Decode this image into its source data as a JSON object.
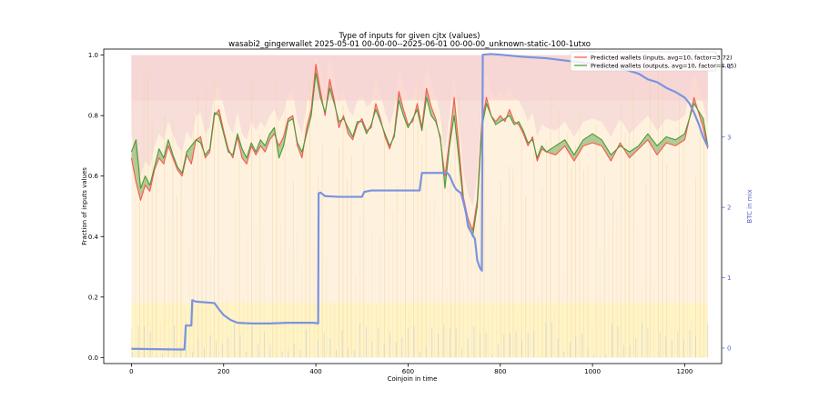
{
  "chart_data": {
    "type": "line",
    "title": "Type of inputs for given cjtx (values)",
    "subtitle": "wasabi2_gingerwallet 2025-05-01 00-00-00--2025-06-01 00-00-00_unknown-static-100-1utxo",
    "xlabel": "Coinjoin in time",
    "ylabel": "Fraction of inputs values",
    "y2label": "BTC in mix",
    "xlim": [
      -60,
      1280
    ],
    "ylim": [
      -0.02,
      1.02
    ],
    "y2lim": [
      -0.22,
      4.25
    ],
    "x_ticks": [
      0,
      200,
      400,
      600,
      800,
      1000,
      1200
    ],
    "y_ticks": [
      0.0,
      0.2,
      0.4,
      0.6,
      0.8,
      1.0
    ],
    "y_tick_labels": [
      "0.0",
      "0.2",
      "0.4",
      "0.6",
      "0.8",
      "1.0"
    ],
    "y2_ticks": [
      0,
      1,
      2,
      3,
      4
    ],
    "y2_tick_labels": [
      "0",
      "1",
      "2",
      "3",
      "4"
    ],
    "legend_position": "top-right",
    "grid": false,
    "series": [
      {
        "name": "Predicted wallets (inputs, avg=10, factor=3.72)",
        "color": "#ff5555",
        "axis": "left",
        "x": [
          0,
          10,
          20,
          30,
          40,
          50,
          60,
          70,
          80,
          90,
          100,
          110,
          120,
          130,
          140,
          150,
          160,
          170,
          180,
          190,
          200,
          210,
          220,
          230,
          240,
          250,
          260,
          270,
          280,
          290,
          300,
          310,
          320,
          330,
          340,
          350,
          360,
          370,
          380,
          390,
          400,
          410,
          420,
          430,
          440,
          450,
          460,
          470,
          480,
          490,
          500,
          510,
          520,
          530,
          540,
          550,
          560,
          570,
          580,
          590,
          600,
          610,
          620,
          630,
          640,
          650,
          660,
          670,
          680,
          690,
          700,
          710,
          720,
          730,
          740,
          750,
          760,
          770,
          780,
          790,
          800,
          810,
          820,
          830,
          840,
          850,
          860,
          870,
          880,
          890,
          900,
          920,
          940,
          960,
          980,
          1000,
          1020,
          1040,
          1060,
          1080,
          1100,
          1120,
          1140,
          1160,
          1180,
          1200,
          1220,
          1240,
          1250
        ],
        "values": [
          0.66,
          0.58,
          0.52,
          0.57,
          0.55,
          0.62,
          0.66,
          0.64,
          0.7,
          0.66,
          0.62,
          0.6,
          0.67,
          0.64,
          0.72,
          0.73,
          0.66,
          0.68,
          0.8,
          0.82,
          0.75,
          0.69,
          0.66,
          0.73,
          0.66,
          0.64,
          0.7,
          0.67,
          0.7,
          0.68,
          0.72,
          0.74,
          0.7,
          0.73,
          0.79,
          0.8,
          0.7,
          0.66,
          0.76,
          0.82,
          0.97,
          0.88,
          0.8,
          0.92,
          0.85,
          0.76,
          0.8,
          0.74,
          0.72,
          0.77,
          0.79,
          0.75,
          0.76,
          0.84,
          0.79,
          0.73,
          0.69,
          0.74,
          0.88,
          0.82,
          0.77,
          0.78,
          0.84,
          0.76,
          0.89,
          0.83,
          0.79,
          0.72,
          0.6,
          0.72,
          0.86,
          0.7,
          0.53,
          0.46,
          0.42,
          0.52,
          0.78,
          0.86,
          0.8,
          0.78,
          0.8,
          0.78,
          0.82,
          0.78,
          0.77,
          0.74,
          0.7,
          0.73,
          0.65,
          0.69,
          0.68,
          0.67,
          0.7,
          0.65,
          0.7,
          0.71,
          0.7,
          0.65,
          0.71,
          0.66,
          0.69,
          0.72,
          0.67,
          0.71,
          0.7,
          0.72,
          0.86,
          0.76,
          0.69
        ]
      },
      {
        "name": "Predicted wallets (outputs, avg=10, factor=4.05)",
        "color": "#4a9a3a",
        "axis": "left",
        "x": [
          0,
          10,
          20,
          30,
          40,
          50,
          60,
          70,
          80,
          90,
          100,
          110,
          120,
          130,
          140,
          150,
          160,
          170,
          180,
          190,
          200,
          210,
          220,
          230,
          240,
          250,
          260,
          270,
          280,
          290,
          300,
          310,
          320,
          330,
          340,
          350,
          360,
          370,
          380,
          390,
          400,
          410,
          420,
          430,
          440,
          450,
          460,
          470,
          480,
          490,
          500,
          510,
          520,
          530,
          540,
          550,
          560,
          570,
          580,
          590,
          600,
          610,
          620,
          630,
          640,
          650,
          660,
          670,
          680,
          690,
          700,
          710,
          720,
          730,
          740,
          750,
          760,
          770,
          780,
          790,
          800,
          810,
          820,
          830,
          840,
          850,
          860,
          870,
          880,
          890,
          900,
          920,
          940,
          960,
          980,
          1000,
          1020,
          1040,
          1060,
          1080,
          1100,
          1120,
          1140,
          1160,
          1180,
          1200,
          1220,
          1240,
          1250
        ],
        "values": [
          0.68,
          0.72,
          0.56,
          0.6,
          0.57,
          0.63,
          0.69,
          0.66,
          0.72,
          0.67,
          0.63,
          0.61,
          0.68,
          0.7,
          0.72,
          0.71,
          0.67,
          0.69,
          0.81,
          0.8,
          0.74,
          0.68,
          0.67,
          0.74,
          0.69,
          0.66,
          0.71,
          0.68,
          0.72,
          0.7,
          0.74,
          0.76,
          0.66,
          0.7,
          0.78,
          0.79,
          0.71,
          0.68,
          0.74,
          0.8,
          0.94,
          0.86,
          0.81,
          0.89,
          0.84,
          0.78,
          0.79,
          0.76,
          0.73,
          0.78,
          0.78,
          0.74,
          0.77,
          0.82,
          0.78,
          0.74,
          0.7,
          0.73,
          0.85,
          0.8,
          0.76,
          0.79,
          0.82,
          0.75,
          0.86,
          0.8,
          0.78,
          0.73,
          0.56,
          0.7,
          0.8,
          0.66,
          0.51,
          0.44,
          0.4,
          0.5,
          0.76,
          0.84,
          0.8,
          0.77,
          0.78,
          0.79,
          0.8,
          0.77,
          0.78,
          0.75,
          0.71,
          0.72,
          0.66,
          0.7,
          0.68,
          0.7,
          0.72,
          0.67,
          0.72,
          0.74,
          0.72,
          0.67,
          0.7,
          0.68,
          0.7,
          0.74,
          0.7,
          0.73,
          0.72,
          0.74,
          0.84,
          0.79,
          0.7
        ]
      },
      {
        "name": "BTC in mix",
        "color": "#7b93e0",
        "axis": "right",
        "x": [
          0,
          100,
          115,
          118,
          130,
          132,
          140,
          160,
          180,
          190,
          200,
          215,
          230,
          260,
          300,
          340,
          380,
          395,
          405,
          406,
          410,
          420,
          450,
          480,
          500,
          505,
          520,
          550,
          600,
          625,
          630,
          680,
          685,
          690,
          700,
          705,
          715,
          725,
          730,
          745,
          750,
          755,
          760,
          762,
          780,
          800,
          850,
          900,
          950,
          1000,
          1050,
          1100,
          1120,
          1140,
          1160,
          1180,
          1200,
          1210,
          1220,
          1230,
          1240,
          1250
        ],
        "values": [
          -0.01,
          -0.02,
          -0.02,
          0.32,
          0.32,
          0.68,
          0.66,
          0.65,
          0.64,
          0.55,
          0.47,
          0.4,
          0.36,
          0.35,
          0.35,
          0.36,
          0.36,
          0.36,
          0.35,
          2.2,
          2.21,
          2.16,
          2.15,
          2.15,
          2.15,
          2.22,
          2.24,
          2.24,
          2.24,
          2.24,
          2.49,
          2.49,
          2.49,
          2.45,
          2.3,
          2.25,
          2.2,
          1.95,
          1.73,
          1.55,
          1.25,
          1.15,
          1.1,
          4.17,
          4.18,
          4.17,
          4.14,
          4.12,
          4.08,
          4.04,
          4.0,
          3.9,
          3.82,
          3.78,
          3.7,
          3.64,
          3.56,
          3.48,
          3.35,
          3.19,
          3.0,
          2.86
        ]
      }
    ]
  }
}
